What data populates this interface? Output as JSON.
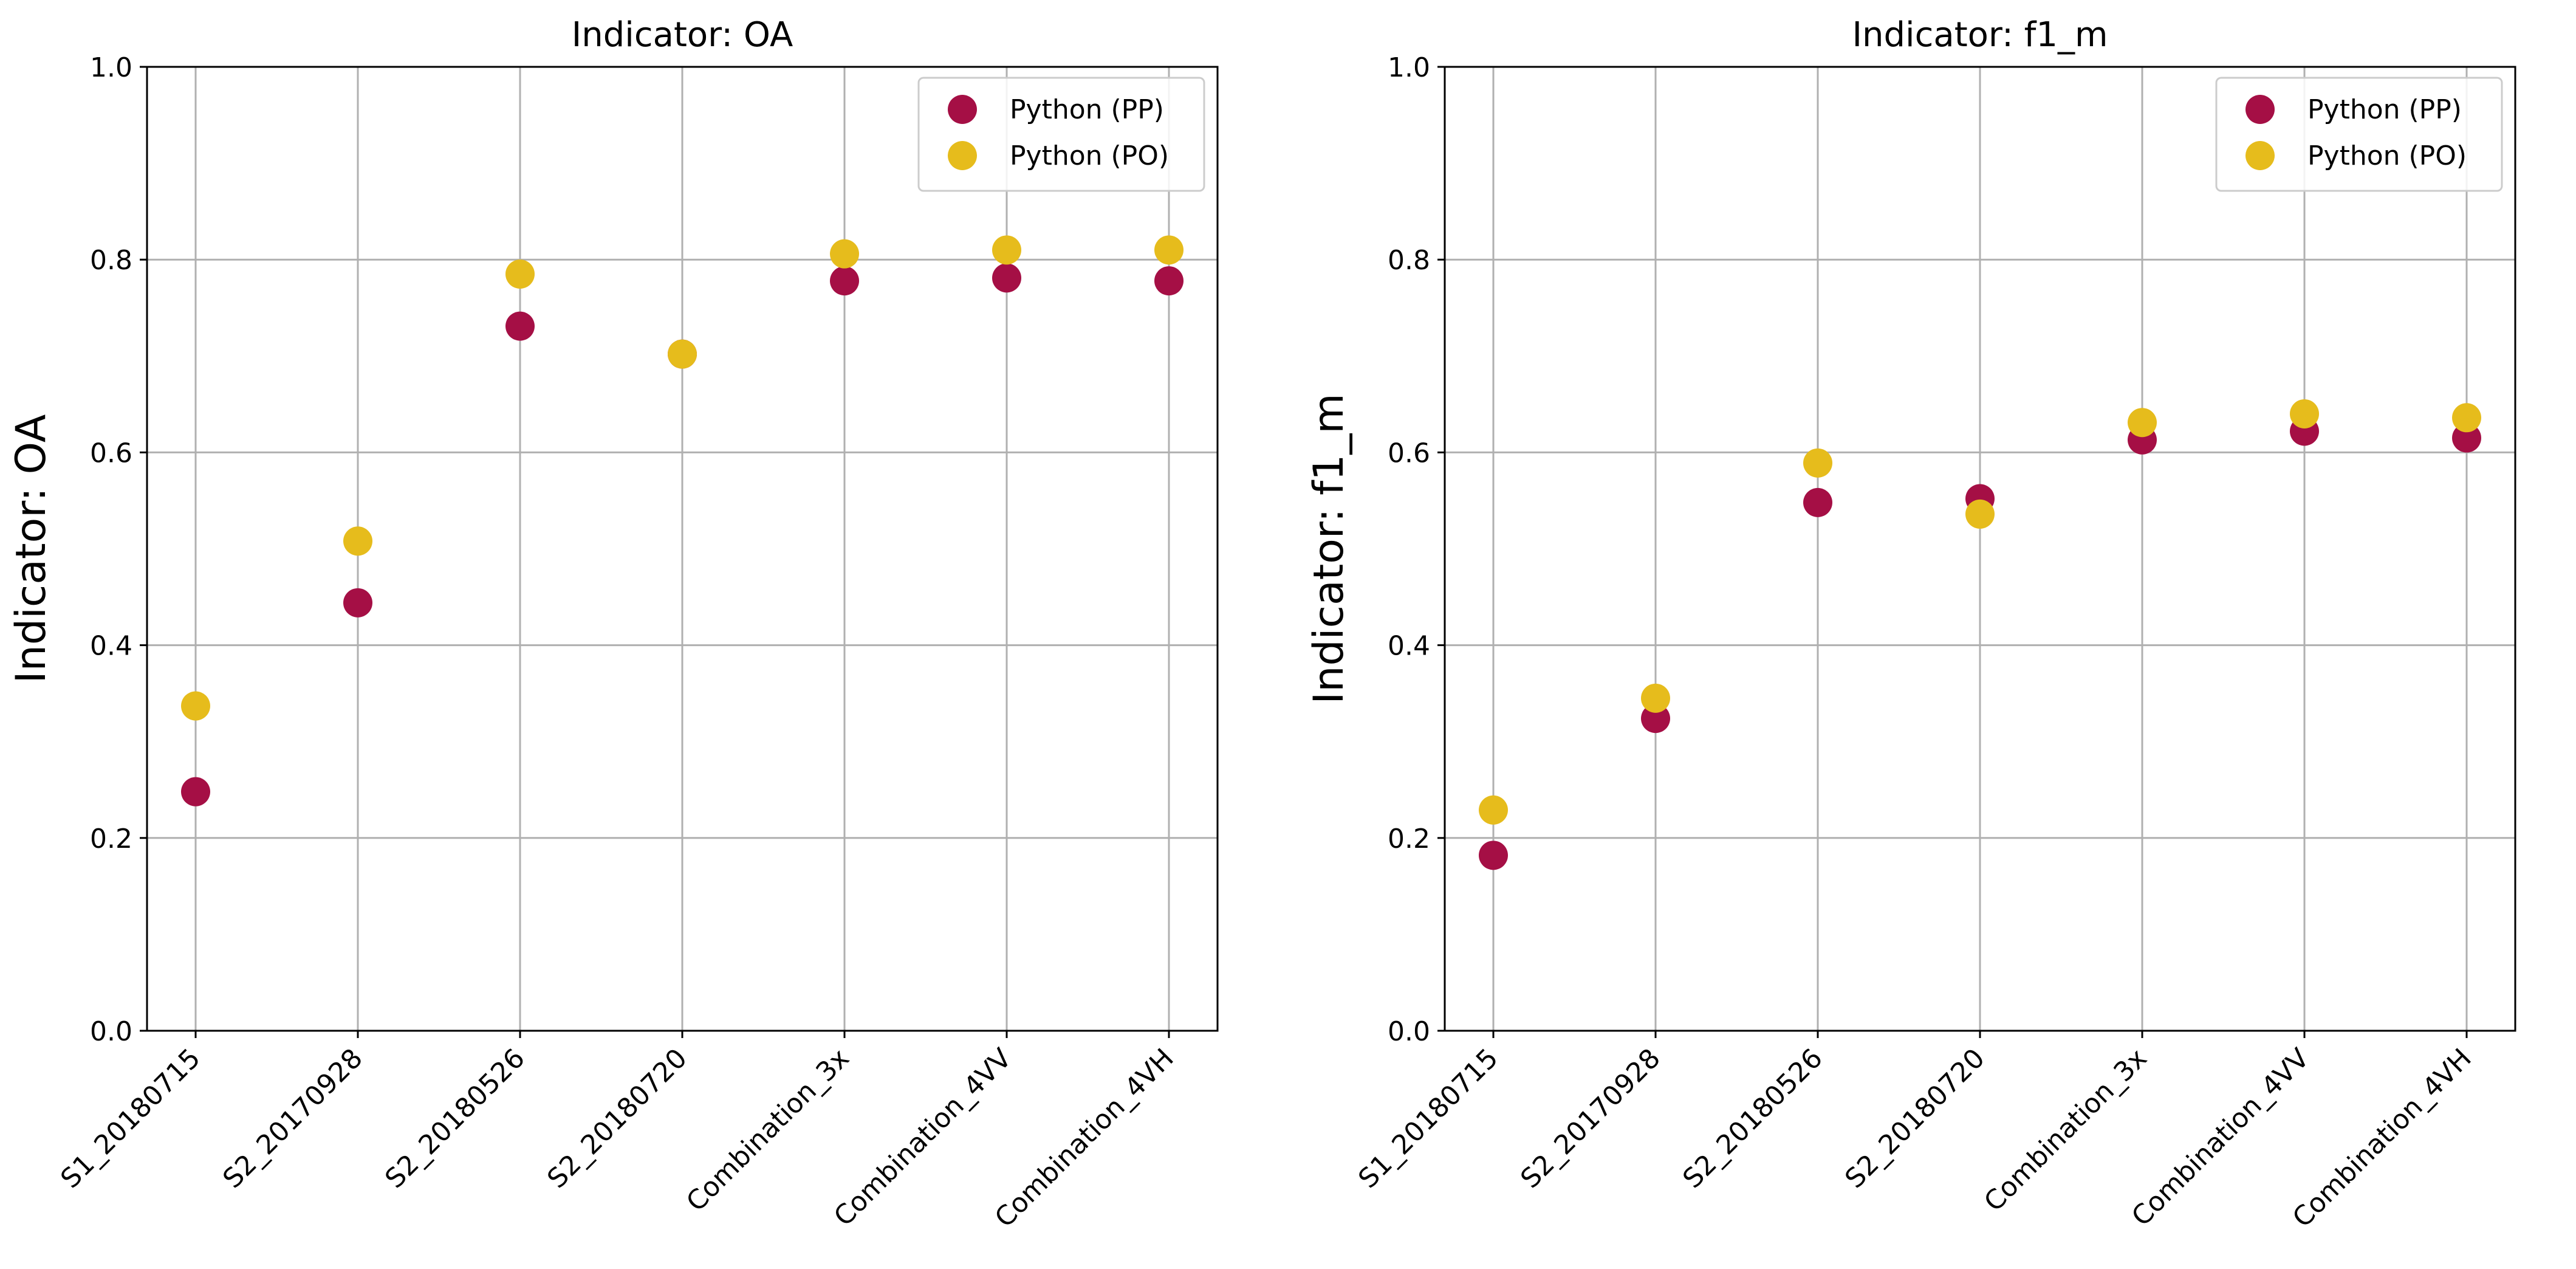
{
  "chart_data": [
    {
      "type": "scatter",
      "title": "Indicator: OA",
      "xlabel": "",
      "ylabel": "Indicator: OA",
      "ylim": [
        0,
        1
      ],
      "yticks": [
        "0.0",
        "0.2",
        "0.4",
        "0.6",
        "0.8",
        "1.0"
      ],
      "categories": [
        "S1_20180715",
        "S2_20170928",
        "S2_20180526",
        "S2_20180720",
        "Combination_3x",
        "Combination_4VV",
        "Combination_4VH"
      ],
      "grid": true,
      "legend_position": "top-right",
      "series": [
        {
          "name": "Python (PP)",
          "color": "#a50f45",
          "values": [
            0.248,
            0.444,
            0.731,
            0.702,
            0.778,
            0.781,
            0.778
          ]
        },
        {
          "name": "Python (PO)",
          "color": "#e6bc1c",
          "values": [
            0.337,
            0.508,
            0.785,
            0.702,
            0.806,
            0.81,
            0.81
          ]
        }
      ]
    },
    {
      "type": "scatter",
      "title": "Indicator: f1_m",
      "xlabel": "",
      "ylabel": "Indicator: f1_m",
      "ylim": [
        0,
        1
      ],
      "yticks": [
        "0.0",
        "0.2",
        "0.4",
        "0.6",
        "0.8",
        "1.0"
      ],
      "categories": [
        "S1_20180715",
        "S2_20170928",
        "S2_20180526",
        "S2_20180720",
        "Combination_3x",
        "Combination_4VV",
        "Combination_4VH"
      ],
      "grid": true,
      "legend_position": "top-right",
      "series": [
        {
          "name": "Python (PP)",
          "color": "#a50f45",
          "values": [
            0.182,
            0.324,
            0.548,
            0.552,
            0.613,
            0.622,
            0.615
          ]
        },
        {
          "name": "Python (PO)",
          "color": "#e6bc1c",
          "values": [
            0.229,
            0.345,
            0.589,
            0.536,
            0.631,
            0.64,
            0.636
          ]
        }
      ]
    }
  ]
}
